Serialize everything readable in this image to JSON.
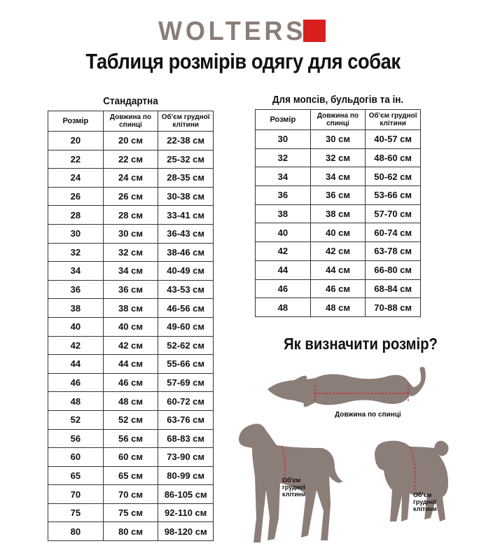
{
  "brand": {
    "name": "WOLTERS",
    "accent": "#d9201f",
    "color": "#8a7e78"
  },
  "title": "Таблиця розмірів одягу для собак",
  "standard": {
    "caption": "Стандартна",
    "headers": [
      "Розмір",
      "Довжина по спинці",
      "Об'єм грудної клітини"
    ],
    "rows": [
      [
        "20",
        "20 см",
        "22-38 см"
      ],
      [
        "22",
        "22 см",
        "25-32 см"
      ],
      [
        "24",
        "24 см",
        "28-35 см"
      ],
      [
        "26",
        "26 см",
        "30-38 см"
      ],
      [
        "28",
        "28 см",
        "33-41 см"
      ],
      [
        "30",
        "30 см",
        "36-43 см"
      ],
      [
        "32",
        "32 см",
        "38-46 см"
      ],
      [
        "34",
        "34 см",
        "40-49 см"
      ],
      [
        "36",
        "36 см",
        "43-53 см"
      ],
      [
        "38",
        "38 см",
        "46-56 см"
      ],
      [
        "40",
        "40 см",
        "49-60 см"
      ],
      [
        "42",
        "42 см",
        "52-62 см"
      ],
      [
        "44",
        "44 см",
        "55-66 см"
      ],
      [
        "46",
        "46 см",
        "57-69 см"
      ],
      [
        "48",
        "48 см",
        "60-72 см"
      ],
      [
        "52",
        "52 см",
        "63-76 см"
      ],
      [
        "56",
        "56 см",
        "68-83 см"
      ],
      [
        "60",
        "60 см",
        "73-90 см"
      ],
      [
        "65",
        "65 см",
        "80-99 см"
      ],
      [
        "70",
        "70 см",
        "86-105 см"
      ],
      [
        "75",
        "75 см",
        "92-110 см"
      ],
      [
        "80",
        "80 см",
        "98-120 см"
      ]
    ]
  },
  "pugs": {
    "caption": "Для мопсів, бульдогів та ін.",
    "headers": [
      "Розмір",
      "Довжина по спинці",
      "Об'єм грудної клітини"
    ],
    "rows": [
      [
        "30",
        "30 см",
        "40-57 см"
      ],
      [
        "32",
        "32 см",
        "48-60 см"
      ],
      [
        "34",
        "34 см",
        "50-62 см"
      ],
      [
        "36",
        "36 см",
        "53-66 см"
      ],
      [
        "38",
        "38 см",
        "57-70 см"
      ],
      [
        "40",
        "40 см",
        "60-74 см"
      ],
      [
        "42",
        "42 см",
        "63-78 см"
      ],
      [
        "44",
        "44 см",
        "66-80 см"
      ],
      [
        "46",
        "46 см",
        "68-84 см"
      ],
      [
        "48",
        "48 см",
        "70-88 см"
      ]
    ]
  },
  "howto": {
    "title": "Як визначити розмір?",
    "back_length": "Довжина по спинці",
    "chest": "Об'єм грудної клітини",
    "chest_lines": [
      "Об'єм",
      "грудної",
      "клітини"
    ]
  }
}
